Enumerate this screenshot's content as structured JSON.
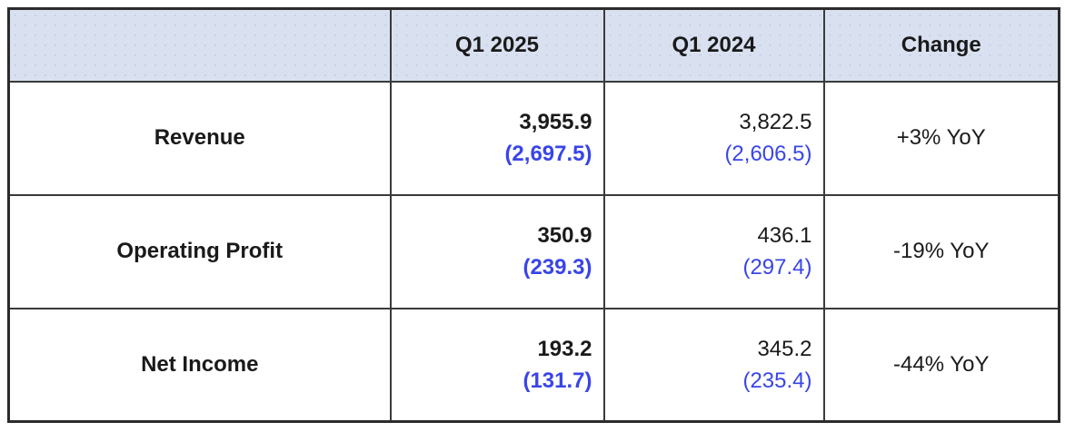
{
  "colors": {
    "header_bg": "#d9e1f1",
    "secondary_value_text": "#3945e8",
    "grid_border": "#3a3a3a",
    "primary_text": "#1a1a1a"
  },
  "table": {
    "columns": [
      "",
      "Q1 2025",
      "Q1 2024",
      "Change"
    ],
    "rows": [
      {
        "label": "Revenue",
        "q1_2025_primary": "3,955.9",
        "q1_2025_secondary": "(2,697.5)",
        "q1_2024_primary": "3,822.5",
        "q1_2024_secondary": "(2,606.5)",
        "change": "+3% YoY"
      },
      {
        "label": "Operating Profit",
        "q1_2025_primary": "350.9",
        "q1_2025_secondary": "(239.3)",
        "q1_2024_primary": "436.1",
        "q1_2024_secondary": "(297.4)",
        "change": "-19% YoY"
      },
      {
        "label": "Net Income",
        "q1_2025_primary": "193.2",
        "q1_2025_secondary": "(131.7)",
        "q1_2024_primary": "345.2",
        "q1_2024_secondary": "(235.4)",
        "change": "-44% YoY"
      }
    ]
  },
  "chart_data": {
    "type": "table",
    "columns": [
      "",
      "Q1 2025",
      "Q1 2024",
      "Change"
    ],
    "rows": [
      {
        "metric": "Revenue",
        "q1_2025": 3955.9,
        "q1_2025_secondary": 2697.5,
        "q1_2024": 3822.5,
        "q1_2024_secondary": 2606.5,
        "change": "+3% YoY"
      },
      {
        "metric": "Operating Profit",
        "q1_2025": 350.9,
        "q1_2025_secondary": 239.3,
        "q1_2024": 436.1,
        "q1_2024_secondary": 297.4,
        "change": "-19% YoY"
      },
      {
        "metric": "Net Income",
        "q1_2025": 193.2,
        "q1_2025_secondary": 131.7,
        "q1_2024": 345.2,
        "q1_2024_secondary": 235.4,
        "change": "-44% YoY"
      }
    ],
    "notes": "Primary values black (Q1 2025 column bold); parenthetical secondary values in blue; header row light blue"
  }
}
